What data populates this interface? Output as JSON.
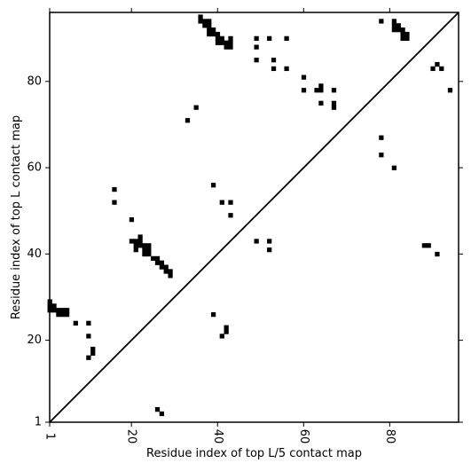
{
  "chart_data": {
    "type": "heatmap",
    "xlabel": "Residue index of top L/5 contact map",
    "ylabel": "Residue index of top L contact map",
    "xlim": [
      1,
      96
    ],
    "ylim": [
      1,
      96
    ],
    "xticks": [
      1,
      20,
      40,
      60,
      80
    ],
    "yticks": [
      1,
      20,
      40,
      60,
      80
    ],
    "xtick_labels": [
      "1",
      "20",
      "40",
      "60",
      "80"
    ],
    "ytick_labels": [
      "1",
      "20",
      "40",
      "60",
      "80"
    ],
    "diagonal": true,
    "grid": false,
    "cell_color": "#000000",
    "lower_triangle_cells_top_L5": [
      [
        1,
        29
      ],
      [
        2,
        28
      ],
      [
        1,
        28
      ],
      [
        2,
        27
      ],
      [
        1,
        27
      ],
      [
        3,
        27
      ],
      [
        3,
        26
      ],
      [
        4,
        26
      ],
      [
        4,
        27
      ],
      [
        5,
        26
      ],
      [
        5,
        27
      ],
      [
        7,
        24
      ],
      [
        10,
        24
      ],
      [
        10,
        21
      ],
      [
        10,
        16
      ],
      [
        11,
        17
      ],
      [
        11,
        18
      ],
      [
        20,
        43
      ],
      [
        21,
        43
      ],
      [
        21,
        42
      ],
      [
        21,
        41
      ],
      [
        22,
        42
      ],
      [
        22,
        43
      ],
      [
        22,
        44
      ],
      [
        23,
        42
      ],
      [
        23,
        41
      ],
      [
        23,
        40
      ],
      [
        24,
        42
      ],
      [
        24,
        41
      ],
      [
        24,
        40
      ],
      [
        25,
        39
      ],
      [
        26,
        39
      ],
      [
        26,
        38
      ],
      [
        27,
        38
      ],
      [
        27,
        37
      ],
      [
        28,
        37
      ],
      [
        28,
        36
      ],
      [
        29,
        36
      ],
      [
        29,
        35
      ],
      [
        26,
        4
      ],
      [
        27,
        3
      ],
      [
        39,
        26
      ],
      [
        41,
        21
      ],
      [
        42,
        22
      ],
      [
        42,
        23
      ],
      [
        49,
        43
      ],
      [
        52,
        43
      ],
      [
        52,
        41
      ],
      [
        88,
        42
      ],
      [
        89,
        42
      ],
      [
        91,
        40
      ]
    ],
    "upper_triangle_cells_top_L": [
      [
        16,
        55
      ],
      [
        16,
        52
      ],
      [
        20,
        48
      ],
      [
        33,
        71
      ],
      [
        35,
        74
      ],
      [
        39,
        56
      ],
      [
        41,
        52
      ],
      [
        43,
        52
      ],
      [
        43,
        49
      ],
      [
        36,
        95
      ],
      [
        36,
        94
      ],
      [
        37,
        94
      ],
      [
        37,
        93
      ],
      [
        38,
        94
      ],
      [
        38,
        93
      ],
      [
        38,
        92
      ],
      [
        39,
        92
      ],
      [
        39,
        91
      ],
      [
        38,
        91
      ],
      [
        40,
        91
      ],
      [
        40,
        90
      ],
      [
        40,
        89
      ],
      [
        41,
        90
      ],
      [
        41,
        89
      ],
      [
        42,
        89
      ],
      [
        42,
        88
      ],
      [
        43,
        90
      ],
      [
        43,
        89
      ],
      [
        43,
        88
      ],
      [
        49,
        90
      ],
      [
        49,
        88
      ],
      [
        49,
        85
      ],
      [
        52,
        90
      ],
      [
        53,
        85
      ],
      [
        53,
        83
      ],
      [
        56,
        90
      ],
      [
        56,
        83
      ],
      [
        60,
        81
      ],
      [
        60,
        78
      ],
      [
        63,
        78
      ],
      [
        64,
        79
      ],
      [
        64,
        78
      ],
      [
        64,
        75
      ],
      [
        67,
        78
      ],
      [
        67,
        75
      ],
      [
        67,
        74
      ],
      [
        78,
        94
      ],
      [
        78,
        67
      ],
      [
        78,
        63
      ],
      [
        81,
        94
      ],
      [
        81,
        93
      ],
      [
        81,
        92
      ],
      [
        82,
        93
      ],
      [
        82,
        92
      ],
      [
        83,
        92
      ],
      [
        83,
        91
      ],
      [
        84,
        91
      ],
      [
        84,
        90
      ],
      [
        83,
        90
      ],
      [
        81,
        60
      ],
      [
        90,
        83
      ],
      [
        91,
        84
      ],
      [
        92,
        83
      ],
      [
        94,
        78
      ]
    ]
  }
}
